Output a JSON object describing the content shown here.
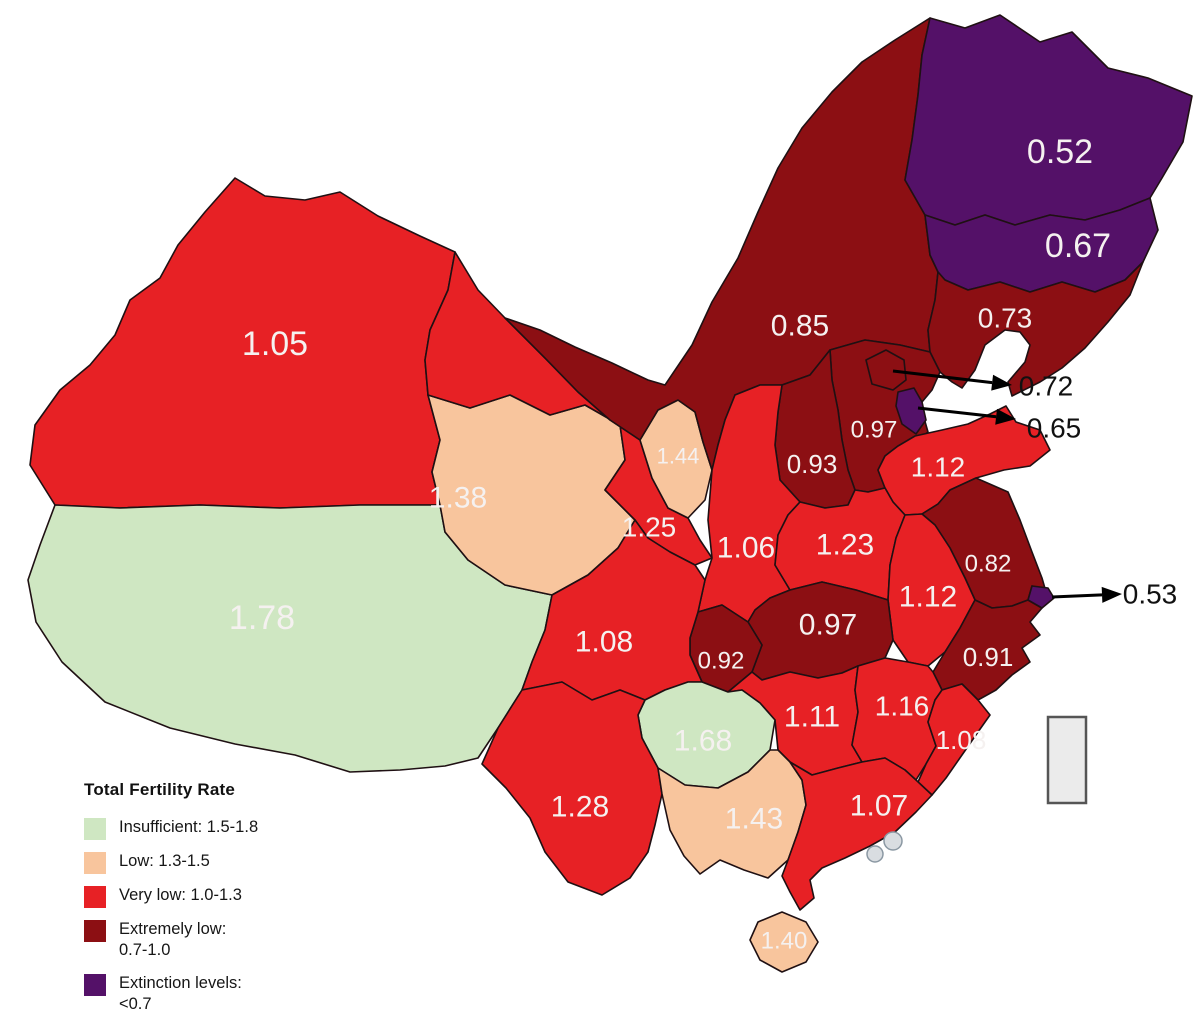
{
  "legend": {
    "title": "Total Fertility Rate",
    "items": [
      {
        "category": "insufficient",
        "lines": [
          "Insufficient: 1.5-1.8"
        ]
      },
      {
        "category": "low",
        "lines": [
          "Low: 1.3-1.5"
        ]
      },
      {
        "category": "very_low",
        "lines": [
          "Very low: 1.0-1.3"
        ]
      },
      {
        "category": "extremely_low",
        "lines": [
          "Extremely low:",
          "0.7-1.0"
        ]
      },
      {
        "category": "extinction",
        "lines": [
          "Extinction levels:",
          "<0.7"
        ]
      }
    ]
  },
  "colors": {
    "insufficient": "#cfe7c2",
    "low": "#f8c59d",
    "very_low": "#e72125",
    "extremely_low": "#8c0f13",
    "extinction": "#541168",
    "map_border": "#1f1013",
    "label_text": "#f5f1f0",
    "callout_text": "#111111",
    "placeholder_fill": "#ebebeb",
    "placeholder_border": "#555555",
    "dot_fill": "#d9dde1",
    "dot_border": "#8b98a3",
    "background": "#ffffff"
  },
  "regions": [
    {
      "name": "xinjiang",
      "value": "1.05",
      "category": "very_low"
    },
    {
      "name": "tibet",
      "value": "1.78",
      "category": "insufficient"
    },
    {
      "name": "qinghai",
      "value": "1.38",
      "category": "low"
    },
    {
      "name": "gansu",
      "value": "1.25",
      "category": "very_low"
    },
    {
      "name": "ningxia",
      "value": "1.44",
      "category": "low"
    },
    {
      "name": "inner-mongolia",
      "value": "0.85",
      "category": "extremely_low"
    },
    {
      "name": "heilongjiang",
      "value": "0.52",
      "category": "extinction"
    },
    {
      "name": "jilin",
      "value": "0.67",
      "category": "extinction"
    },
    {
      "name": "liaoning",
      "value": "0.73",
      "category": "extremely_low"
    },
    {
      "name": "hebei",
      "value": "0.97",
      "category": "extremely_low"
    },
    {
      "name": "shanxi",
      "value": "0.93",
      "category": "extremely_low"
    },
    {
      "name": "shaanxi",
      "value": "1.06",
      "category": "very_low"
    },
    {
      "name": "shandong",
      "value": "1.12",
      "category": "very_low"
    },
    {
      "name": "henan",
      "value": "1.23",
      "category": "very_low"
    },
    {
      "name": "jiangsu",
      "value": "0.82",
      "category": "extremely_low"
    },
    {
      "name": "anhui",
      "value": "1.12",
      "category": "very_low"
    },
    {
      "name": "hubei",
      "value": "0.97",
      "category": "extremely_low"
    },
    {
      "name": "chongqing",
      "value": "0.92",
      "category": "extremely_low"
    },
    {
      "name": "sichuan",
      "value": "1.08",
      "category": "very_low"
    },
    {
      "name": "zhejiang",
      "value": "0.91",
      "category": "extremely_low"
    },
    {
      "name": "hunan",
      "value": "1.11",
      "category": "very_low"
    },
    {
      "name": "jiangxi",
      "value": "1.16",
      "category": "very_low"
    },
    {
      "name": "fujian",
      "value": "1.08",
      "category": "very_low"
    },
    {
      "name": "guizhou",
      "value": "1.68",
      "category": "insufficient"
    },
    {
      "name": "yunnan",
      "value": "1.28",
      "category": "very_low"
    },
    {
      "name": "guangxi",
      "value": "1.43",
      "category": "low"
    },
    {
      "name": "guangdong",
      "value": "1.07",
      "category": "very_low"
    },
    {
      "name": "hainan",
      "value": "1.40",
      "category": "low"
    },
    {
      "name": "beijing",
      "value": "0.72",
      "category": "extremely_low"
    },
    {
      "name": "tianjin",
      "value": "0.65",
      "category": "extinction"
    },
    {
      "name": "shanghai",
      "value": "0.53",
      "category": "extinction"
    }
  ]
}
